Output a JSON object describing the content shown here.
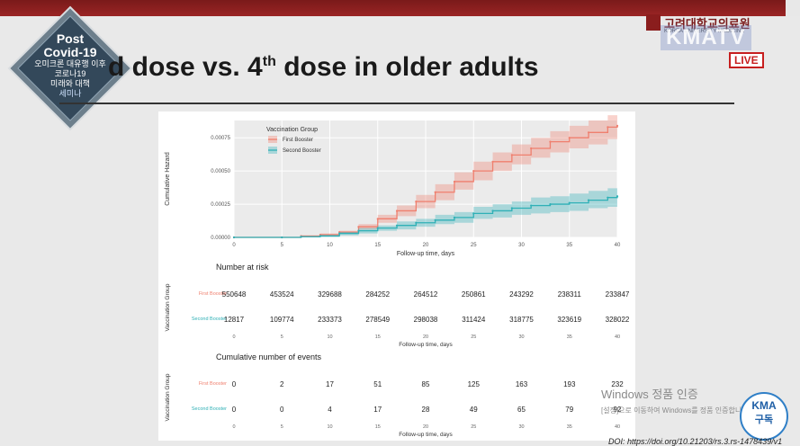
{
  "slide": {
    "title_pre": "d dose vs. 4",
    "title_sup": "th",
    "title_post": " dose in older adults",
    "doi": "DOI: https://doi.org/10.21203/rs.3.rs-1478439/v1"
  },
  "badge": {
    "line1": "Post",
    "line2": "Covid-19",
    "line3": "오미크론 대유행 이후",
    "line4": "코로나19",
    "line5": "미래와 대책",
    "line6": "세미나"
  },
  "broadcast": {
    "institution": "고려대학교의료원",
    "institution_en": "KOREA UNIVERSITY MEDICINE",
    "channel": "KMATV",
    "live": "LIVE",
    "subscribe_top": "KMA",
    "subscribe_bottom": "구독",
    "win_line1": "Windows 정품 인증",
    "win_line2": "[설정]으로 이동하여 Windows를 정품 인증합니다."
  },
  "chart_data": {
    "type": "line",
    "legend": {
      "title": "Vaccination Group",
      "placement": "top-left",
      "entries": [
        "First Booster",
        "Second Booster"
      ]
    },
    "ylabel": "Cumulative Hazard",
    "xlabel": "Follow-up time, days",
    "xlim": [
      0,
      40
    ],
    "ylim": [
      0,
      0.00088
    ],
    "yticks": [
      "0.00000",
      "0.00025",
      "0.00050",
      "0.00075"
    ],
    "ytick_values": [
      0,
      0.00025,
      0.0005,
      0.00075
    ],
    "xticks": [
      "0",
      "5",
      "10",
      "15",
      "20",
      "25",
      "30",
      "35",
      "40"
    ],
    "xtick_values": [
      0,
      5,
      10,
      15,
      20,
      25,
      30,
      35,
      40
    ],
    "grid": true,
    "colors": {
      "first": "#ef7f6e",
      "second": "#2fb0b6"
    },
    "series": [
      {
        "name": "First Booster",
        "x": [
          0,
          5,
          7,
          9,
          11,
          13,
          15,
          17,
          19,
          21,
          23,
          25,
          27,
          29,
          31,
          33,
          35,
          37,
          39,
          40
        ],
        "values": [
          0,
          0,
          1e-05,
          2e-05,
          4e-05,
          8e-05,
          0.00014,
          0.0002,
          0.00027,
          0.00034,
          0.00042,
          0.0005,
          0.00057,
          0.00062,
          0.00067,
          0.00072,
          0.00075,
          0.00079,
          0.00083,
          0.00084
        ],
        "lower": [
          0,
          0,
          5e-06,
          1.2e-05,
          3e-05,
          6e-05,
          0.00011,
          0.00016,
          0.00022,
          0.00028,
          0.00036,
          0.00043,
          0.0005,
          0.00055,
          0.0006,
          0.00064,
          0.00067,
          0.0007,
          0.00074,
          0.00075
        ],
        "upper": [
          0,
          0,
          1.5e-05,
          3e-05,
          5e-05,
          0.0001,
          0.00017,
          0.00024,
          0.00032,
          0.0004,
          0.00049,
          0.00057,
          0.00064,
          0.0007,
          0.00075,
          0.0008,
          0.00084,
          0.00088,
          0.00092,
          0.00093
        ]
      },
      {
        "name": "Second Booster",
        "x": [
          0,
          5,
          7,
          9,
          11,
          13,
          15,
          17,
          19,
          21,
          23,
          25,
          27,
          29,
          31,
          33,
          35,
          37,
          39,
          40
        ],
        "values": [
          0,
          0,
          5e-06,
          1e-05,
          3e-05,
          5e-05,
          7e-05,
          9e-05,
          0.00011,
          0.00013,
          0.00015,
          0.00018,
          0.0002,
          0.00022,
          0.00024,
          0.00025,
          0.00026,
          0.00028,
          0.0003,
          0.00031
        ],
        "lower": [
          0,
          0,
          0,
          4e-06,
          1.5e-05,
          3e-05,
          5e-05,
          6e-05,
          8e-05,
          0.0001,
          0.00011,
          0.00014,
          0.00015,
          0.00017,
          0.00018,
          0.00019,
          0.0002,
          0.00022,
          0.00023,
          0.00024
        ],
        "upper": [
          0,
          0,
          1e-05,
          2e-05,
          4e-05,
          7e-05,
          9e-05,
          0.00012,
          0.00014,
          0.00017,
          0.00019,
          0.00023,
          0.00025,
          0.00027,
          0.0003,
          0.00031,
          0.00033,
          0.00035,
          0.00037,
          0.00038
        ]
      }
    ],
    "tables": [
      {
        "title": "Number at risk",
        "ylabel": "Vaccination Group",
        "xlabel": "Follow-up time, days",
        "rows": [
          {
            "group": "First Booster",
            "values": [
              "550648",
              "453524",
              "329688",
              "284252",
              "264512",
              "250861",
              "243292",
              "238311",
              "233847"
            ]
          },
          {
            "group": "Second Booster",
            "values": [
              "12817",
              "109774",
              "233373",
              "278549",
              "298038",
              "311424",
              "318775",
              "323619",
              "328022"
            ]
          }
        ]
      },
      {
        "title": "Cumulative number of events",
        "ylabel": "Vaccination Group",
        "xlabel": "Follow-up time, days",
        "rows": [
          {
            "group": "First Booster",
            "values": [
              "0",
              "2",
              "17",
              "51",
              "85",
              "125",
              "163",
              "193",
              "232"
            ]
          },
          {
            "group": "Second Booster",
            "values": [
              "0",
              "0",
              "4",
              "17",
              "28",
              "49",
              "65",
              "79",
              "92"
            ]
          }
        ]
      }
    ]
  }
}
